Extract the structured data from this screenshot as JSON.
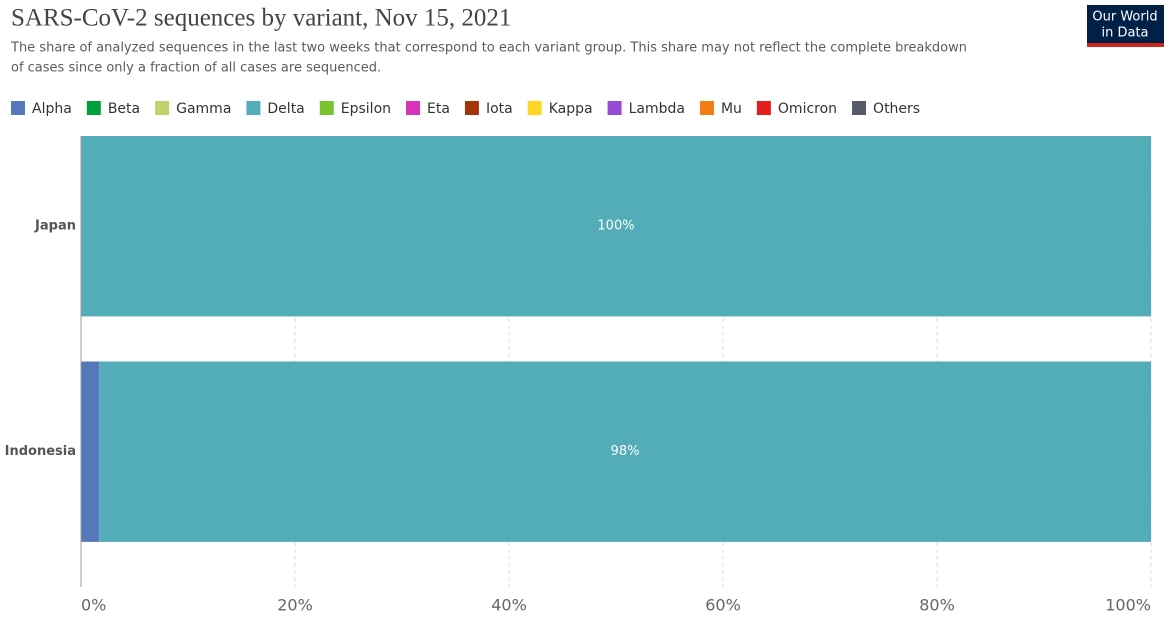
{
  "logo": [
    "Our World",
    "in Data"
  ],
  "chart_data": {
    "type": "stacked-bar-horizontal",
    "title": "SARS-CoV-2 sequences by variant, Nov 15, 2021",
    "subtitle": [
      "The share of analyzed sequences in the last two weeks that correspond to each variant group. This share may not reflect the complete breakdown",
      "of cases since only a fraction of all cases are sequenced."
    ],
    "categories": [
      "Japan",
      "Indonesia"
    ],
    "series": [
      {
        "name": "Alpha",
        "color": "#5578bb",
        "values": [
          0,
          1.7
        ]
      },
      {
        "name": "Beta",
        "color": "#00a13d",
        "values": [
          0,
          0
        ]
      },
      {
        "name": "Gamma",
        "color": "#bfd36e",
        "values": [
          0,
          0
        ]
      },
      {
        "name": "Delta",
        "color": "#52adb8",
        "values": [
          100,
          98.3
        ],
        "value_labels": [
          "100%",
          "98%"
        ]
      },
      {
        "name": "Epsilon",
        "color": "#78c331",
        "values": [
          0,
          0
        ]
      },
      {
        "name": "Eta",
        "color": "#d932ba",
        "values": [
          0,
          0
        ]
      },
      {
        "name": "Iota",
        "color": "#a2340c",
        "values": [
          0,
          0
        ]
      },
      {
        "name": "Kappa",
        "color": "#fcd724",
        "values": [
          0,
          0
        ]
      },
      {
        "name": "Lambda",
        "color": "#9a4bd6",
        "values": [
          0,
          0
        ]
      },
      {
        "name": "Mu",
        "color": "#f37d0f",
        "values": [
          0,
          0
        ]
      },
      {
        "name": "Omicron",
        "color": "#e11d1d",
        "values": [
          0,
          0
        ]
      },
      {
        "name": "Others",
        "color": "#565b6b",
        "values": [
          0,
          0
        ]
      }
    ],
    "xlim": [
      0,
      100
    ],
    "xticks": [
      {
        "value": 0,
        "label": "0%"
      },
      {
        "value": 20,
        "label": "20%"
      },
      {
        "value": 40,
        "label": "40%"
      },
      {
        "value": 60,
        "label": "60%"
      },
      {
        "value": 80,
        "label": "80%"
      },
      {
        "value": 100,
        "label": "100%"
      }
    ],
    "grid": true
  }
}
